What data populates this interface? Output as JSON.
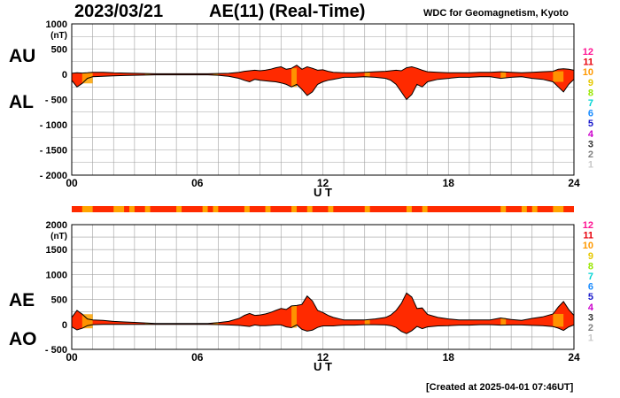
{
  "header": {
    "date": "2023/03/21",
    "title": "AE(11) (Real-Time)",
    "source": "WDC for Geomagnetism, Kyoto"
  },
  "footer": {
    "created": "[Created at 2025-04-01 07:46UT]"
  },
  "station_count_legend": [
    "12",
    "11",
    "10",
    "9",
    "8",
    "7",
    "6",
    "5",
    "4",
    "3",
    "2",
    "1"
  ],
  "station_count_colors": [
    "#ff1493",
    "#e8000b",
    "#ff9900",
    "#e6c800",
    "#99e600",
    "#00d4d4",
    "#1a8cff",
    "#1a1acc",
    "#cc00cc",
    "#333333",
    "#808080",
    "#c8c8c8"
  ],
  "colors": {
    "fill_main": "#ff2a00",
    "fill_partial": "#ffa500",
    "grid": "#a0a0a0",
    "line": "#000000",
    "bar_bg": "#ff2a00"
  },
  "chart_data": [
    {
      "type": "area",
      "name": "AU/AL panel",
      "left_labels": [
        "AU",
        "AL"
      ],
      "unit": "(nT)",
      "xlabel": "U T",
      "x_ticks": [
        "00",
        "06",
        "12",
        "18",
        "24"
      ],
      "xlim": [
        0,
        24
      ],
      "ylim": [
        -2000,
        1000
      ],
      "y_ticks": [
        1000,
        500,
        0,
        -500,
        -1000,
        -1500,
        -2000
      ],
      "y_tick_labels": [
        "1000",
        "500",
        "0",
        "- 500",
        "- 1000",
        "- 1500",
        "- 2000"
      ],
      "x": [
        0,
        0.25,
        0.5,
        0.75,
        1,
        1.5,
        2,
        2.5,
        3,
        3.5,
        4,
        4.5,
        5,
        5.5,
        6,
        6.5,
        7,
        7.5,
        8,
        8.25,
        8.5,
        8.75,
        9,
        9.25,
        9.5,
        9.75,
        10,
        10.25,
        10.5,
        10.75,
        11,
        11.25,
        11.5,
        11.75,
        12,
        12.25,
        12.5,
        12.75,
        13,
        13.5,
        14,
        14.5,
        15,
        15.25,
        15.5,
        15.75,
        16,
        16.25,
        16.5,
        16.75,
        17,
        17.5,
        18,
        18.5,
        19,
        19.5,
        20,
        20.5,
        21,
        21.5,
        22,
        22.5,
        23,
        23.25,
        23.5,
        23.75,
        24
      ],
      "series": [
        {
          "name": "AU",
          "values": [
            20,
            30,
            25,
            30,
            40,
            40,
            30,
            25,
            20,
            15,
            10,
            10,
            10,
            10,
            10,
            10,
            15,
            20,
            40,
            60,
            70,
            80,
            70,
            80,
            100,
            130,
            150,
            100,
            120,
            180,
            100,
            150,
            120,
            80,
            90,
            60,
            40,
            35,
            30,
            30,
            40,
            50,
            60,
            70,
            80,
            70,
            130,
            150,
            120,
            80,
            50,
            40,
            30,
            30,
            30,
            40,
            40,
            50,
            40,
            30,
            40,
            50,
            60,
            100,
            110,
            100,
            80
          ]
        },
        {
          "name": "AL",
          "values": [
            -120,
            -250,
            -180,
            -80,
            -50,
            -40,
            -30,
            -25,
            -20,
            -15,
            -10,
            -10,
            -10,
            -10,
            -10,
            -10,
            -20,
            -40,
            -80,
            -120,
            -150,
            -100,
            -120,
            -130,
            -140,
            -150,
            -170,
            -200,
            -250,
            -200,
            -300,
            -420,
            -350,
            -200,
            -150,
            -120,
            -100,
            -80,
            -60,
            -60,
            -50,
            -60,
            -80,
            -120,
            -200,
            -350,
            -500,
            -400,
            -200,
            -250,
            -150,
            -100,
            -80,
            -60,
            -60,
            -50,
            -50,
            -80,
            -60,
            -50,
            -80,
            -100,
            -150,
            -250,
            -350,
            -200,
            -100
          ]
        }
      ]
    },
    {
      "type": "area",
      "name": "AE/AO panel",
      "left_labels": [
        "AE",
        "AO"
      ],
      "unit": "(nT)",
      "xlabel": "U T",
      "x_ticks": [
        "00",
        "06",
        "12",
        "18",
        "24"
      ],
      "xlim": [
        0,
        24
      ],
      "ylim": [
        -500,
        2000
      ],
      "y_ticks": [
        2000,
        1500,
        1000,
        500,
        0,
        -500
      ],
      "y_tick_labels": [
        "2000",
        "1500",
        "1000",
        "500",
        "0",
        "- 500"
      ],
      "x": [
        0,
        0.25,
        0.5,
        0.75,
        1,
        1.5,
        2,
        2.5,
        3,
        3.5,
        4,
        4.5,
        5,
        5.5,
        6,
        6.5,
        7,
        7.5,
        8,
        8.25,
        8.5,
        8.75,
        9,
        9.25,
        9.5,
        9.75,
        10,
        10.25,
        10.5,
        10.75,
        11,
        11.25,
        11.5,
        11.75,
        12,
        12.25,
        12.5,
        12.75,
        13,
        13.5,
        14,
        14.5,
        15,
        15.25,
        15.5,
        15.75,
        16,
        16.25,
        16.5,
        16.75,
        17,
        17.5,
        18,
        18.5,
        19,
        19.5,
        20,
        20.5,
        21,
        21.5,
        22,
        22.5,
        23,
        23.25,
        23.5,
        23.75,
        24
      ],
      "series": [
        {
          "name": "AE",
          "values": [
            140,
            280,
            205,
            110,
            90,
            80,
            60,
            50,
            40,
            30,
            20,
            20,
            20,
            20,
            20,
            20,
            35,
            60,
            120,
            180,
            220,
            180,
            190,
            210,
            240,
            280,
            320,
            300,
            370,
            380,
            400,
            570,
            470,
            280,
            240,
            180,
            140,
            115,
            90,
            90,
            90,
            110,
            140,
            190,
            280,
            420,
            630,
            550,
            320,
            330,
            200,
            140,
            110,
            90,
            90,
            90,
            90,
            130,
            100,
            80,
            120,
            150,
            210,
            350,
            460,
            300,
            180
          ]
        },
        {
          "name": "AO",
          "values": [
            -50,
            -110,
            -78,
            -25,
            -5,
            0,
            0,
            0,
            0,
            0,
            0,
            0,
            0,
            0,
            0,
            0,
            -3,
            -10,
            -20,
            -30,
            -40,
            -10,
            -25,
            -25,
            -20,
            -10,
            -10,
            -50,
            -65,
            -10,
            -100,
            -135,
            -115,
            -60,
            -30,
            -30,
            -30,
            -22,
            -15,
            -15,
            -5,
            -5,
            -10,
            -25,
            -60,
            -140,
            -185,
            -125,
            -40,
            -85,
            -50,
            -30,
            -25,
            -15,
            -15,
            -5,
            -5,
            -15,
            -10,
            -10,
            -20,
            -25,
            -45,
            -75,
            -120,
            -50,
            -10
          ]
        }
      ]
    }
  ],
  "quality_bar": {
    "orange_segments": [
      [
        0.5,
        1.0
      ],
      [
        2.0,
        2.5
      ],
      [
        2.75,
        3.0
      ],
      [
        3.5,
        3.75
      ],
      [
        5.0,
        5.25
      ],
      [
        6.25,
        6.5
      ],
      [
        6.75,
        7.0
      ],
      [
        8.25,
        8.5
      ],
      [
        9.25,
        9.5
      ],
      [
        10.5,
        10.75
      ],
      [
        11.25,
        11.5
      ],
      [
        12.25,
        12.5
      ],
      [
        14.0,
        14.25
      ],
      [
        16.0,
        16.25
      ],
      [
        16.75,
        17.0
      ],
      [
        20.5,
        20.75
      ],
      [
        21.5,
        21.75
      ],
      [
        22.0,
        22.25
      ],
      [
        23.0,
        23.5
      ]
    ]
  }
}
